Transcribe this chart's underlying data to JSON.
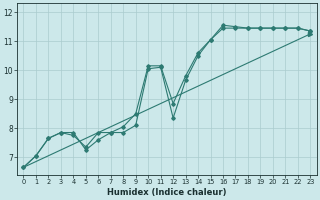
{
  "xlabel": "Humidex (Indice chaleur)",
  "xlim": [
    -0.5,
    23.5
  ],
  "ylim": [
    6.4,
    12.3
  ],
  "xticks": [
    0,
    1,
    2,
    3,
    4,
    5,
    6,
    7,
    8,
    9,
    10,
    11,
    12,
    13,
    14,
    15,
    16,
    17,
    18,
    19,
    20,
    21,
    22,
    23
  ],
  "yticks": [
    7,
    8,
    9,
    10,
    11,
    12
  ],
  "bg_color": "#cce8ea",
  "grid_color": "#aaccce",
  "line_color": "#2d7a72",
  "line1_x": [
    0,
    1,
    2,
    3,
    4,
    5,
    6,
    7,
    8,
    9,
    10,
    11,
    12,
    13,
    14,
    15,
    16,
    17,
    18,
    19,
    20,
    21,
    22,
    23
  ],
  "line1_y": [
    6.65,
    7.05,
    7.65,
    7.85,
    7.85,
    7.25,
    7.6,
    7.85,
    7.85,
    8.1,
    10.05,
    10.1,
    8.35,
    9.65,
    10.5,
    11.05,
    11.45,
    11.45,
    11.45,
    11.45,
    11.45,
    11.45,
    11.45,
    11.35
  ],
  "line2_x": [
    0,
    1,
    2,
    3,
    4,
    5,
    6,
    7,
    8,
    9,
    10,
    11,
    12,
    13,
    14,
    15,
    16,
    17,
    18,
    19,
    20,
    21,
    22,
    23
  ],
  "line2_y": [
    6.65,
    7.05,
    7.65,
    7.85,
    7.75,
    7.35,
    7.85,
    7.85,
    8.05,
    8.5,
    10.15,
    10.15,
    8.85,
    9.8,
    10.6,
    11.05,
    11.55,
    11.5,
    11.45,
    11.45,
    11.45,
    11.45,
    11.45,
    11.35
  ],
  "line3_x": [
    0,
    23
  ],
  "line3_y": [
    6.65,
    11.25
  ]
}
